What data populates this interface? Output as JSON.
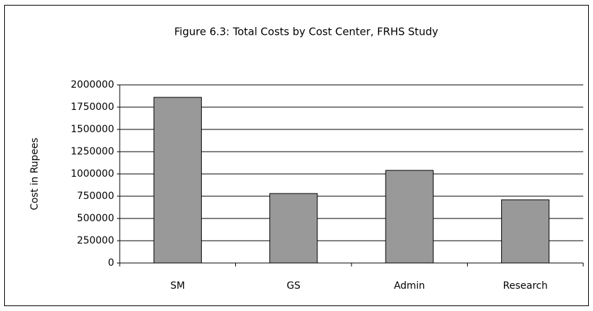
{
  "chart_data": {
    "type": "bar",
    "title": "Figure 6.3: Total Costs by Cost Center, FRHS Study",
    "y_label": "Cost in Rupees",
    "categories": [
      "SM",
      "GS",
      "Admin",
      "Research"
    ],
    "values": [
      1860000,
      780000,
      1040000,
      710000
    ],
    "color": "#999999",
    "ylim": [
      0,
      2000000
    ],
    "yticks": [
      0,
      250000,
      500000,
      750000,
      1000000,
      1250000,
      1500000,
      1750000,
      2000000
    ],
    "grid": true
  }
}
